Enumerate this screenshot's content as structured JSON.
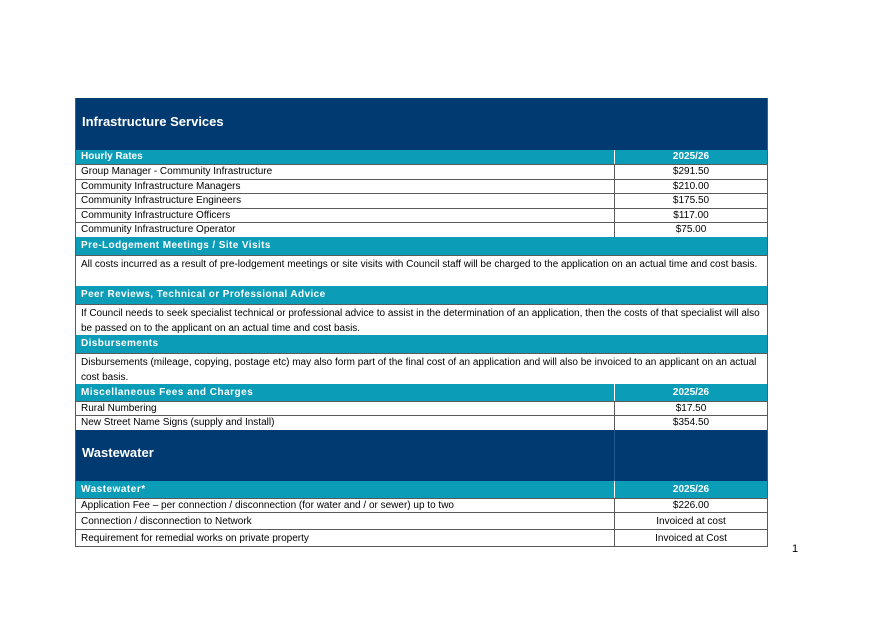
{
  "infrastructure": {
    "title": "Infrastructure Services",
    "hourly": {
      "header": "Hourly Rates",
      "year": "2025/26",
      "rows": [
        {
          "label": "Group Manager - Community Infrastructure",
          "value": "$291.50"
        },
        {
          "label": "Community Infrastructure Managers",
          "value": "$210.00"
        },
        {
          "label": "Community Infrastructure Engineers",
          "value": "$175.50"
        },
        {
          "label": "Community Infrastructure Officers",
          "value": "$117.00"
        },
        {
          "label": "Community Infrastructure Operator",
          "value": "$75.00"
        }
      ]
    },
    "prelodgement": {
      "header": "Pre-Lodgement Meetings / Site Visits",
      "text": "All costs incurred as a result of pre-lodgement meetings or site visits with Council staff will be charged to the application on an actual time and cost basis."
    },
    "peer": {
      "header": "Peer Reviews, Technical or Professional Advice",
      "text": "If Council needs to seek specialist technical or professional advice to assist in the determination of an application, then the costs of that specialist will also be passed on to the applicant on an actual time and cost basis."
    },
    "disbursements": {
      "header": "Disbursements",
      "text": "Disbursements (mileage, copying, postage etc) may also form part of the final cost of an application and will also be invoiced to an applicant on an actual cost basis."
    },
    "misc": {
      "header": "Miscellaneous Fees and Charges",
      "year": "2025/26",
      "rows": [
        {
          "label": "Rural Numbering",
          "value": "$17.50"
        },
        {
          "label": "New Street Name Signs (supply and Install)",
          "value": "$354.50"
        }
      ]
    }
  },
  "wastewater": {
    "title": "Wastewater",
    "header": "Wastewater*",
    "year": "2025/26",
    "rows": [
      {
        "label": "Application Fee – per connection / disconnection (for water and / or sewer) up to two",
        "value": "$226.00"
      },
      {
        "label": "Connection / disconnection to Network",
        "value": "Invoiced at cost"
      },
      {
        "label": "Requirement for remedial works on private property",
        "value": "Invoiced at Cost"
      }
    ]
  },
  "page_number": "1"
}
